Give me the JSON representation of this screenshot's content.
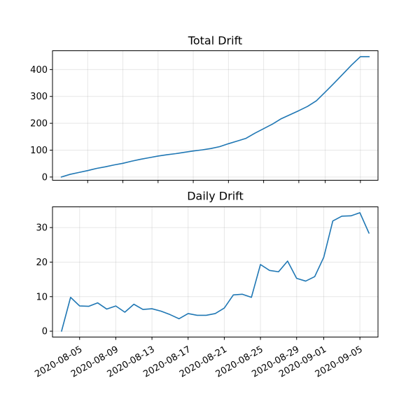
{
  "chart_data": [
    {
      "type": "line",
      "title": "Total Drift",
      "xlabel": "",
      "ylabel": "",
      "x_start": "2020-08-02",
      "x": [
        "2020-08-02",
        "2020-08-03",
        "2020-08-04",
        "2020-08-05",
        "2020-08-06",
        "2020-08-07",
        "2020-08-08",
        "2020-08-09",
        "2020-08-10",
        "2020-08-11",
        "2020-08-12",
        "2020-08-13",
        "2020-08-14",
        "2020-08-15",
        "2020-08-16",
        "2020-08-17",
        "2020-08-18",
        "2020-08-19",
        "2020-08-20",
        "2020-08-21",
        "2020-08-22",
        "2020-08-23",
        "2020-08-24",
        "2020-08-25",
        "2020-08-26",
        "2020-08-27",
        "2020-08-28",
        "2020-08-29",
        "2020-08-30",
        "2020-08-31",
        "2020-09-01",
        "2020-09-02",
        "2020-09-03",
        "2020-09-04",
        "2020-09-05",
        "2020-09-06"
      ],
      "series": [
        {
          "values": [
            0,
            10,
            17,
            24,
            32,
            38,
            45,
            51,
            59,
            66,
            72,
            78,
            83,
            87,
            92,
            97,
            101,
            106,
            113,
            124,
            134,
            144,
            163,
            180,
            197,
            217,
            232,
            247,
            263,
            284,
            316,
            349,
            383,
            417,
            448,
            448
          ]
        }
      ],
      "xlim": [
        "2020-08-01",
        "2020-09-07"
      ],
      "ylim": [
        -12,
        470
      ],
      "yticks": [
        0,
        100,
        200,
        300,
        400
      ],
      "grid": true,
      "show_xtick_labels": false
    },
    {
      "type": "line",
      "title": "Daily Drift",
      "xlabel": "",
      "ylabel": "",
      "x": [
        "2020-08-03",
        "2020-08-04",
        "2020-08-05",
        "2020-08-06",
        "2020-08-07",
        "2020-08-08",
        "2020-08-09",
        "2020-08-10",
        "2020-08-11",
        "2020-08-12",
        "2020-08-13",
        "2020-08-14",
        "2020-08-15",
        "2020-08-16",
        "2020-08-17",
        "2020-08-18",
        "2020-08-19",
        "2020-08-20",
        "2020-08-21",
        "2020-08-22",
        "2020-08-23",
        "2020-08-24",
        "2020-08-25",
        "2020-08-26",
        "2020-08-27",
        "2020-08-28",
        "2020-08-29",
        "2020-08-30",
        "2020-08-31",
        "2020-09-01",
        "2020-09-02",
        "2020-09-03",
        "2020-09-04",
        "2020-09-05",
        "2020-09-06"
      ],
      "series": [
        {
          "values": [
            0,
            9.8,
            7.3,
            7.2,
            8.2,
            6.4,
            7.3,
            5.5,
            7.8,
            6.3,
            6.5,
            5.8,
            4.8,
            3.6,
            5.1,
            4.6,
            4.6,
            5.1,
            6.7,
            10.5,
            10.7,
            9.8,
            19.3,
            17.6,
            17.2,
            20.3,
            15.3,
            14.5,
            15.8,
            21.4,
            31.9,
            33.3,
            33.4,
            34.3,
            28.4
          ]
        }
      ],
      "xlim": [
        "2020-08-02",
        "2020-09-07"
      ],
      "ylim": [
        -1.7,
        36
      ],
      "yticks": [
        0,
        10,
        20,
        30
      ],
      "xticks": [
        "2020-08-05",
        "2020-08-09",
        "2020-08-13",
        "2020-08-17",
        "2020-08-21",
        "2020-08-25",
        "2020-08-29",
        "2020-09-01",
        "2020-09-05"
      ],
      "grid": true,
      "show_xtick_labels": true
    }
  ]
}
